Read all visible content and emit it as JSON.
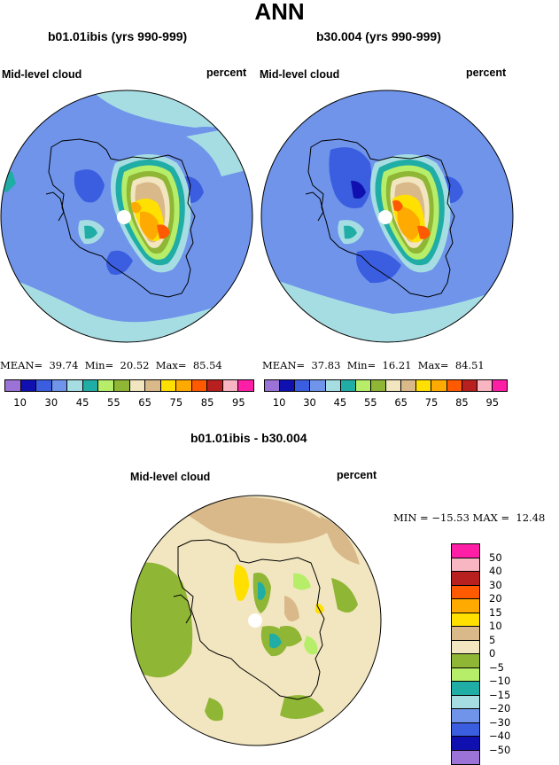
{
  "title": "ANN",
  "panels": [
    {
      "case_title": "b01.01ibis (yrs 990-999)",
      "field": "Mid-level cloud",
      "units": "percent",
      "stats": "MEAN=  39.74  Min=  20.52  Max=  85.54"
    },
    {
      "case_title": "b30.004 (yrs 990-999)",
      "field": "Mid-level cloud",
      "units": "percent",
      "stats": "MEAN=  37.83  Min=  16.21  Max=  84.51"
    }
  ],
  "colorbar": {
    "colors": [
      "#9b72d6",
      "#1010b0",
      "#3b5ee0",
      "#6f94ea",
      "#a6dde3",
      "#20ada6",
      "#b6ee6a",
      "#8fb634",
      "#f2e6c0",
      "#d9b88a",
      "#ffe000",
      "#ffaa00",
      "#ff5a00",
      "#b82020",
      "#f7b6c2",
      "#ff1fa6"
    ],
    "labels": [
      "10",
      "30",
      "45",
      "55",
      "65",
      "75",
      "85",
      "95"
    ]
  },
  "diff": {
    "title": "b01.01ibis - b30.004",
    "field": "Mid-level cloud",
    "units": "percent",
    "stats": "MIN = −15.53 MAX =  12.48",
    "colorbar_colors": [
      "#ff1fa6",
      "#f7b6c2",
      "#b82020",
      "#ff5a00",
      "#ffaa00",
      "#ffe000",
      "#d9b88a",
      "#f2e6c0",
      "#8fb634",
      "#b6ee6a",
      "#20ada6",
      "#a6dde3",
      "#6f94ea",
      "#3b5ee0",
      "#1010b0",
      "#9b72d6"
    ],
    "colorbar_labels": [
      "50",
      "40",
      "30",
      "20",
      "15",
      "10",
      "5",
      "0",
      "−5",
      "−10",
      "−15",
      "−20",
      "−30",
      "−40",
      "−50"
    ]
  }
}
